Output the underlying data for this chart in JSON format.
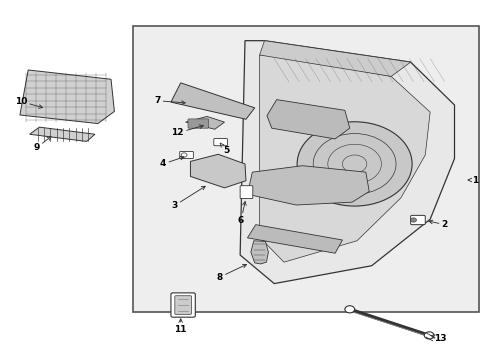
{
  "bg_color": "#ffffff",
  "box_bg": "#eeeeee",
  "box_edge": "#555555",
  "line_color": "#333333",
  "label_color": "#000000",
  "annotations": [
    {
      "label": "1",
      "txy": [
        0.972,
        0.5
      ],
      "axy": [
        0.95,
        0.5
      ]
    },
    {
      "label": "2",
      "txy": [
        0.91,
        0.375
      ],
      "axy": [
        0.87,
        0.387
      ]
    },
    {
      "label": "3",
      "txy": [
        0.355,
        0.428
      ],
      "axy": [
        0.425,
        0.488
      ]
    },
    {
      "label": "4",
      "txy": [
        0.332,
        0.545
      ],
      "axy": [
        0.382,
        0.568
      ]
    },
    {
      "label": "5",
      "txy": [
        0.462,
        0.582
      ],
      "axy": [
        0.448,
        0.605
      ]
    },
    {
      "label": "6",
      "txy": [
        0.492,
        0.388
      ],
      "axy": [
        0.502,
        0.45
      ]
    },
    {
      "label": "7",
      "txy": [
        0.32,
        0.722
      ],
      "axy": [
        0.385,
        0.715
      ]
    },
    {
      "label": "8",
      "txy": [
        0.448,
        0.228
      ],
      "axy": [
        0.51,
        0.268
      ]
    },
    {
      "label": "9",
      "txy": [
        0.072,
        0.59
      ],
      "axy": [
        0.108,
        0.628
      ]
    },
    {
      "label": "10",
      "txy": [
        0.04,
        0.72
      ],
      "axy": [
        0.092,
        0.7
      ]
    },
    {
      "label": "11",
      "txy": [
        0.368,
        0.082
      ],
      "axy": [
        0.368,
        0.122
      ]
    },
    {
      "label": "12",
      "txy": [
        0.362,
        0.632
      ],
      "axy": [
        0.422,
        0.655
      ]
    },
    {
      "label": "13",
      "txy": [
        0.9,
        0.057
      ],
      "axy": [
        0.875,
        0.068
      ]
    }
  ]
}
